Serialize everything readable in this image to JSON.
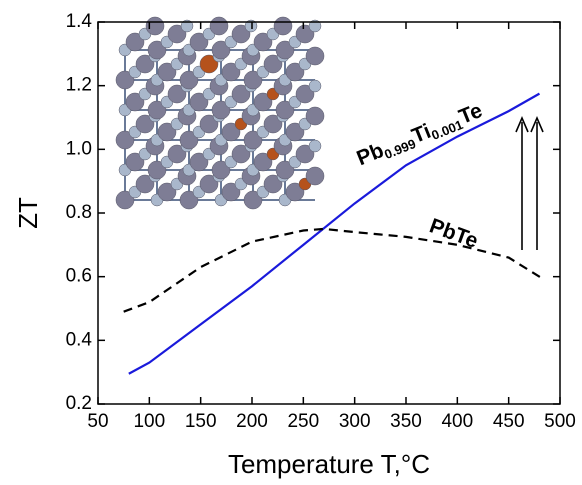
{
  "chart_data": {
    "type": "line",
    "x_label": "Temperature T,°C",
    "y_label": "ZT",
    "series": [
      {
        "name": "Pb0.999Ti0.001Te",
        "color": "#1a1adb",
        "dash": false,
        "x": [
          80,
          100,
          150,
          200,
          250,
          300,
          350,
          400,
          450,
          480
        ],
        "values": [
          0.295,
          0.33,
          0.45,
          0.57,
          0.7,
          0.83,
          0.95,
          1.04,
          1.12,
          1.175
        ]
      },
      {
        "name": "PbTe",
        "color": "#000000",
        "dash": true,
        "x": [
          75,
          100,
          150,
          200,
          250,
          270,
          300,
          350,
          400,
          450,
          485
        ],
        "values": [
          0.49,
          0.52,
          0.63,
          0.71,
          0.745,
          0.75,
          0.74,
          0.725,
          0.7,
          0.66,
          0.59
        ]
      }
    ],
    "xlim": [
      50,
      500
    ],
    "xticks": [
      50,
      100,
      150,
      200,
      250,
      300,
      350,
      400,
      450,
      500
    ],
    "ylim": [
      0.2,
      1.4
    ],
    "yticks": [
      0.2,
      0.4,
      0.6,
      0.8,
      {
        "value": 1,
        "label": "1.0"
      },
      1.2,
      1.4
    ],
    "grid": false
  }
}
